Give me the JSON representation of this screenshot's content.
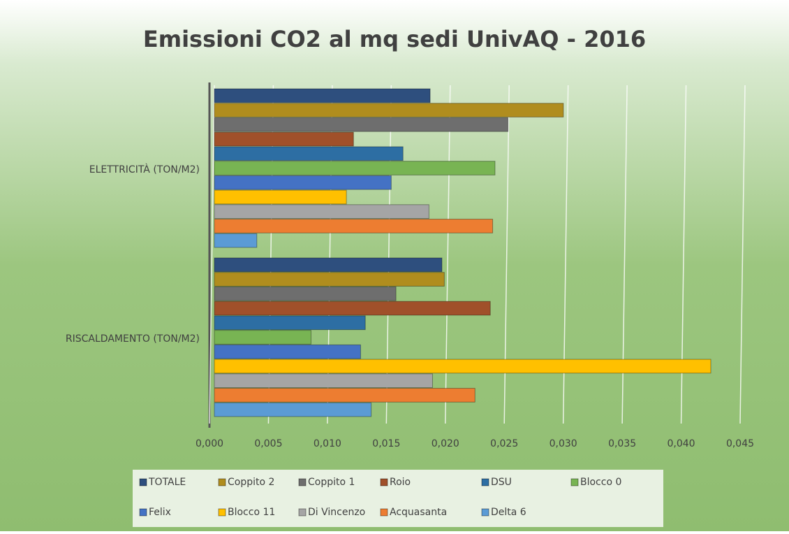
{
  "chart_data": {
    "type": "barh",
    "title": "Emissioni CO2 al mq sedi UnivAQ - 2016",
    "categories": [
      "ELETTRICITÀ (TON/M2)",
      "RISCALDAMENTO (TON/M2)"
    ],
    "series": [
      {
        "name": "TOTALE",
        "color": "#2e4f7e",
        "values": [
          0.0183,
          0.0193
        ]
      },
      {
        "name": "Coppito 2",
        "color": "#b08d1e",
        "values": [
          0.0296,
          0.0195
        ]
      },
      {
        "name": "Coppito 1",
        "color": "#6e6e6e",
        "values": [
          0.0249,
          0.0154
        ]
      },
      {
        "name": "Roio",
        "color": "#a0502a",
        "values": [
          0.0118,
          0.0234
        ]
      },
      {
        "name": "DSU",
        "color": "#2d6ea3",
        "values": [
          0.016,
          0.0128
        ]
      },
      {
        "name": "Blocco 0",
        "color": "#78b453",
        "values": [
          0.0238,
          0.0082
        ]
      },
      {
        "name": "Felix",
        "color": "#4472c4",
        "values": [
          0.015,
          0.0124
        ]
      },
      {
        "name": "Blocco 11",
        "color": "#ffc000",
        "values": [
          0.0112,
          0.0421
        ]
      },
      {
        "name": "Di Vincenzo",
        "color": "#a5a5a5",
        "values": [
          0.0182,
          0.0185
        ]
      },
      {
        "name": "Acquasanta",
        "color": "#ed7d31",
        "values": [
          0.0236,
          0.0221
        ]
      },
      {
        "name": "Delta 6",
        "color": "#5b9bd5",
        "values": [
          0.0036,
          0.0133
        ]
      }
    ],
    "xlim": [
      0,
      0.045
    ],
    "xticks": [
      {
        "value": 0,
        "label": "0,000"
      },
      {
        "value": 0.005,
        "label": "0,005"
      },
      {
        "value": 0.01,
        "label": "0,010"
      },
      {
        "value": 0.015,
        "label": "0,015"
      },
      {
        "value": 0.02,
        "label": "0,020"
      },
      {
        "value": 0.025,
        "label": "0,025"
      },
      {
        "value": 0.03,
        "label": "0,030"
      },
      {
        "value": 0.035,
        "label": "0,035"
      },
      {
        "value": 0.04,
        "label": "0,040"
      },
      {
        "value": 0.045,
        "label": "0,045"
      }
    ],
    "grid": true,
    "legend": "bottom"
  }
}
